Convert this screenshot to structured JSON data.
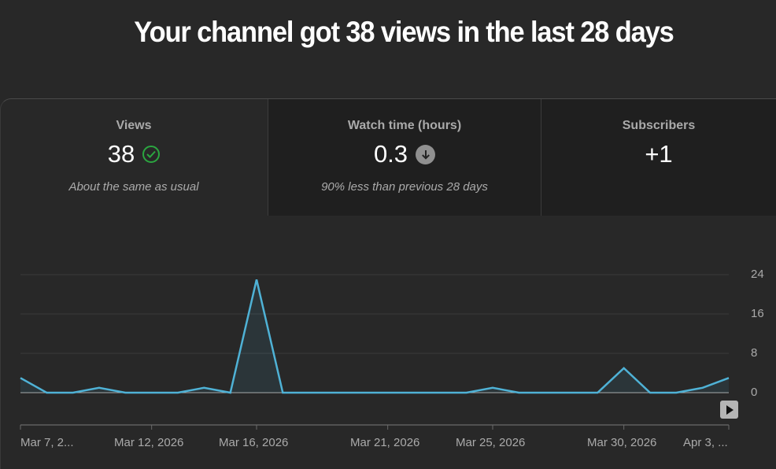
{
  "headline": "Your channel got 38 views in the last 28 days",
  "tabs": [
    {
      "label": "Views",
      "value": "38",
      "status_icon": "check-circle-icon",
      "status_color": "#2ba640",
      "note": "About the same as usual",
      "selected": true
    },
    {
      "label": "Watch time (hours)",
      "value": "0.3",
      "status_icon": "arrow-down-circle-icon",
      "status_color": "#909090",
      "note": "90% less than previous 28 days",
      "selected": false
    },
    {
      "label": "Subscribers",
      "value": "+1",
      "status_icon": null,
      "note": "",
      "selected": false
    }
  ],
  "colors": {
    "background": "#282828",
    "tab_inactive": "#1f1f1f",
    "line": "#4fb2d6",
    "gridline": "#3a3a3a",
    "baseline": "#aaaaaa",
    "text_secondary": "#aaaaaa"
  },
  "chart": {
    "y_ticks": [
      "24",
      "16",
      "8",
      "0"
    ],
    "x_ticks": [
      "Mar 7, 2...",
      "Mar 12, 2026",
      "Mar 16, 2026",
      "Mar 21, 2026",
      "Mar 25, 2026",
      "Mar 30, 2026",
      "Apr 3, ..."
    ],
    "next_button": "play-arrow-icon"
  },
  "chart_data": {
    "type": "line",
    "title": "Views",
    "xlabel": "",
    "ylabel": "Views",
    "ylim": [
      0,
      24
    ],
    "grid": true,
    "legend": "none",
    "x": [
      "Mar 7",
      "Mar 8",
      "Mar 9",
      "Mar 10",
      "Mar 11",
      "Mar 12",
      "Mar 13",
      "Mar 14",
      "Mar 15",
      "Mar 16",
      "Mar 17",
      "Mar 18",
      "Mar 19",
      "Mar 20",
      "Mar 21",
      "Mar 22",
      "Mar 23",
      "Mar 24",
      "Mar 25",
      "Mar 26",
      "Mar 27",
      "Mar 28",
      "Mar 29",
      "Mar 30",
      "Mar 31",
      "Apr 1",
      "Apr 2",
      "Apr 3"
    ],
    "series": [
      {
        "name": "Views",
        "values": [
          3,
          0,
          0,
          1,
          0,
          0,
          0,
          1,
          0,
          23,
          0,
          0,
          0,
          0,
          0,
          0,
          0,
          0,
          1,
          0,
          0,
          0,
          0,
          5,
          0,
          0,
          1,
          3
        ]
      }
    ],
    "y_tick_labels": [
      "0",
      "8",
      "16",
      "24"
    ],
    "x_tick_labels": [
      "Mar 7, 2...",
      "Mar 12, 2026",
      "Mar 16, 2026",
      "Mar 21, 2026",
      "Mar 25, 2026",
      "Mar 30, 2026",
      "Apr 3, ..."
    ]
  }
}
